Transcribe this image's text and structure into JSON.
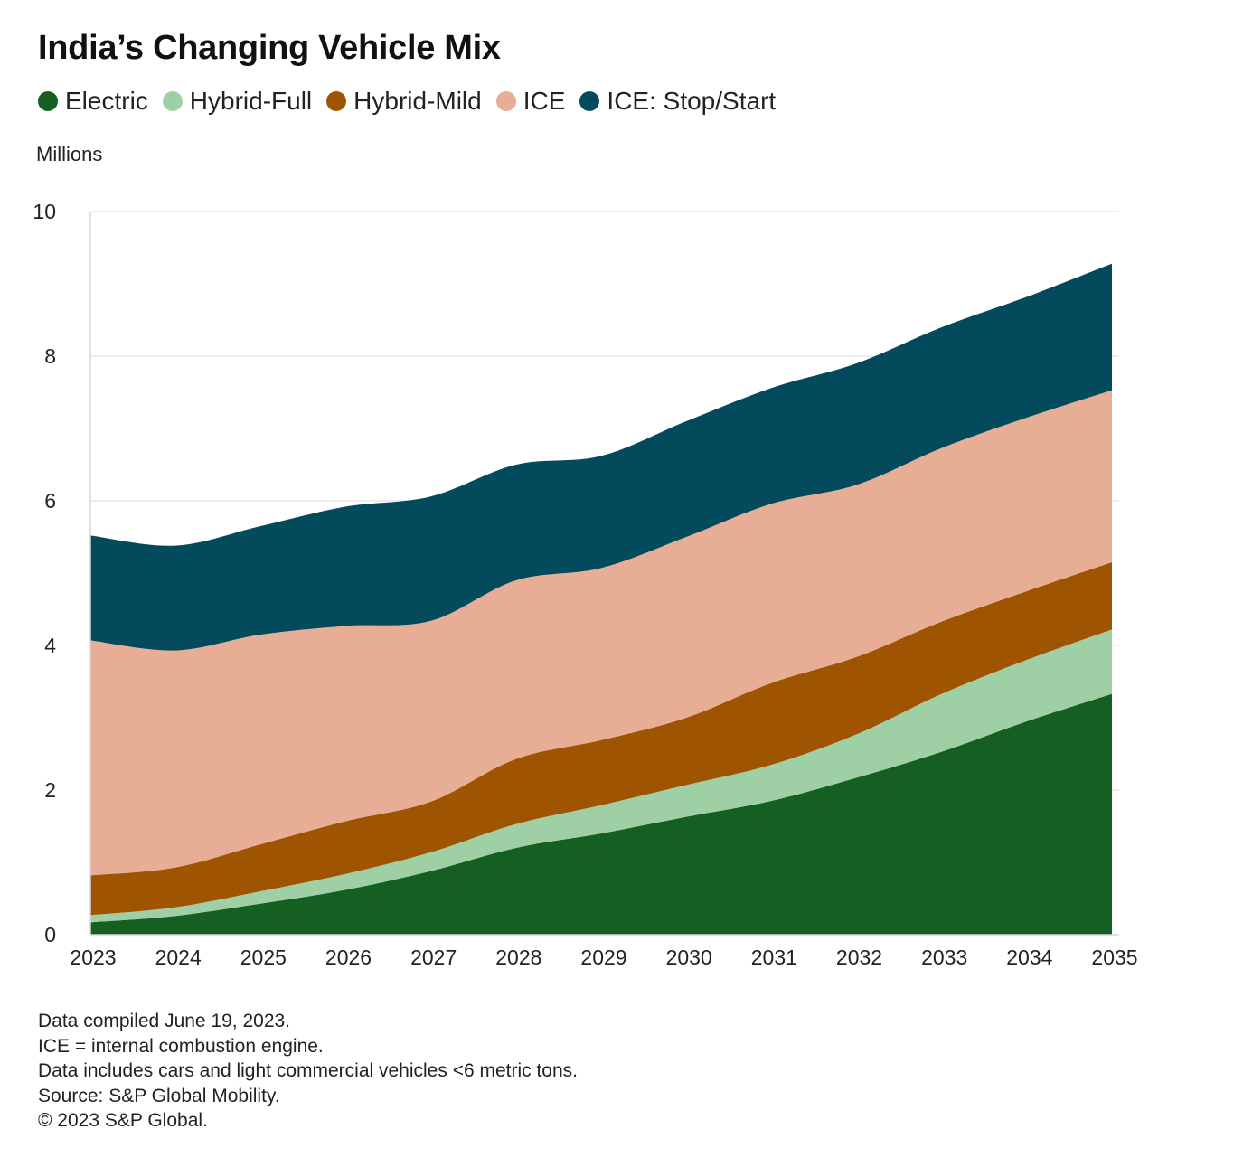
{
  "chart_data": {
    "type": "area",
    "stacked": true,
    "title": "India’s Changing Vehicle Mix",
    "ylabel": "Millions",
    "xlabel": "",
    "ylim": [
      0,
      10
    ],
    "yticks": [
      0,
      2,
      4,
      6,
      8,
      10
    ],
    "grid": true,
    "legend_position": "top-left",
    "categories": [
      "2023",
      "2024",
      "2025",
      "2026",
      "2027",
      "2028",
      "2029",
      "2030",
      "2031",
      "2032",
      "2033",
      "2034",
      "2035"
    ],
    "series": [
      {
        "name": "Electric",
        "color": "#155f22",
        "values": [
          0.17,
          0.26,
          0.43,
          0.62,
          0.88,
          1.2,
          1.4,
          1.63,
          1.85,
          2.17,
          2.53,
          2.95,
          3.33
        ]
      },
      {
        "name": "Hybrid-Full",
        "color": "#9fcfa4",
        "values": [
          0.1,
          0.12,
          0.17,
          0.22,
          0.26,
          0.33,
          0.39,
          0.44,
          0.5,
          0.6,
          0.8,
          0.85,
          0.89
        ]
      },
      {
        "name": "Hybrid-Mild",
        "color": "#9e5400",
        "values": [
          0.55,
          0.55,
          0.65,
          0.73,
          0.7,
          0.9,
          0.9,
          0.93,
          1.13,
          1.07,
          1.0,
          0.95,
          0.93
        ]
      },
      {
        "name": "ICE",
        "color": "#e8ad95",
        "values": [
          3.25,
          3.0,
          2.9,
          2.7,
          2.5,
          2.47,
          2.38,
          2.5,
          2.48,
          2.38,
          2.4,
          2.4,
          2.38
        ]
      },
      {
        "name": "ICE: Stop/Start",
        "color": "#034a5c",
        "values": [
          1.45,
          1.45,
          1.5,
          1.65,
          1.72,
          1.6,
          1.55,
          1.6,
          1.6,
          1.68,
          1.67,
          1.67,
          1.75
        ]
      }
    ]
  },
  "footnotes": [
    "Data compiled June 19, 2023.",
    "ICE = internal combustion engine.",
    "Data includes cars and light commercial vehicles <6 metric tons.",
    "Source: S&P Global Mobility.",
    "© 2023 S&P Global."
  ]
}
